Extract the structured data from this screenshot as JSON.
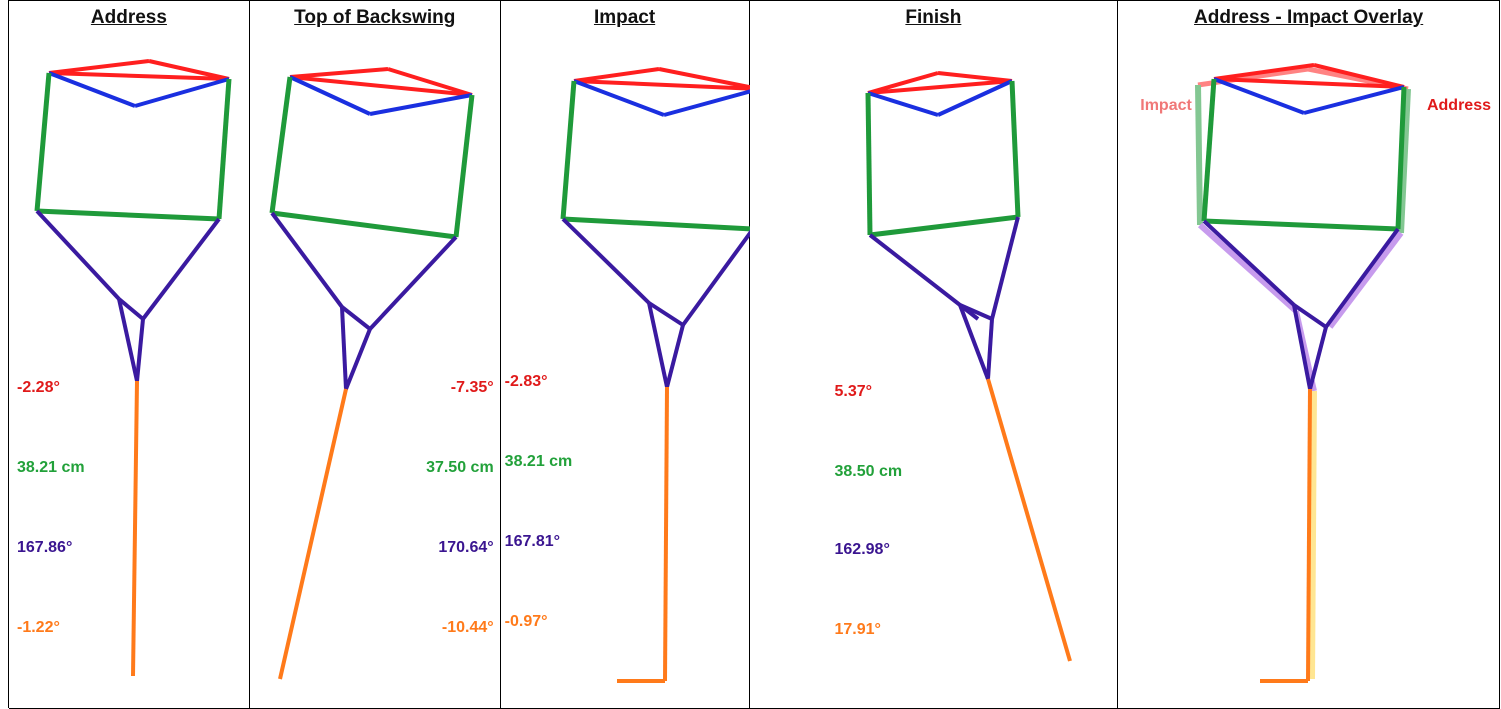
{
  "panels": [
    {
      "title": "Address",
      "values": {
        "red": "-2.28°",
        "green": "38.21 cm",
        "purple": "167.86°",
        "orange": "-1.22°"
      }
    },
    {
      "title": "Top of Backswing",
      "values": {
        "red": "-7.35°",
        "green": "37.50 cm",
        "purple": "170.64°",
        "orange": "-10.44°"
      }
    },
    {
      "title": "Impact",
      "values": {
        "red": "-2.83°",
        "green": "38.21 cm",
        "purple": "167.81°",
        "orange": "-0.97°"
      }
    },
    {
      "title": "Finish",
      "values": {
        "red": "5.37°",
        "green": "38.50 cm",
        "purple": "162.98°",
        "orange": "17.91°"
      }
    },
    {
      "title": "Address - Impact Overlay",
      "legend": {
        "impact": "Impact",
        "address": "Address"
      }
    }
  ],
  "colors": {
    "shoulder": "#ff1f1f",
    "shoulder_inner": "#1a2fe0",
    "torso": "#1f9a3a",
    "arms": "#3a1aa0",
    "club": "#ff7a1a",
    "impact_label": "#f07878",
    "address_label": "#e01a1a"
  }
}
